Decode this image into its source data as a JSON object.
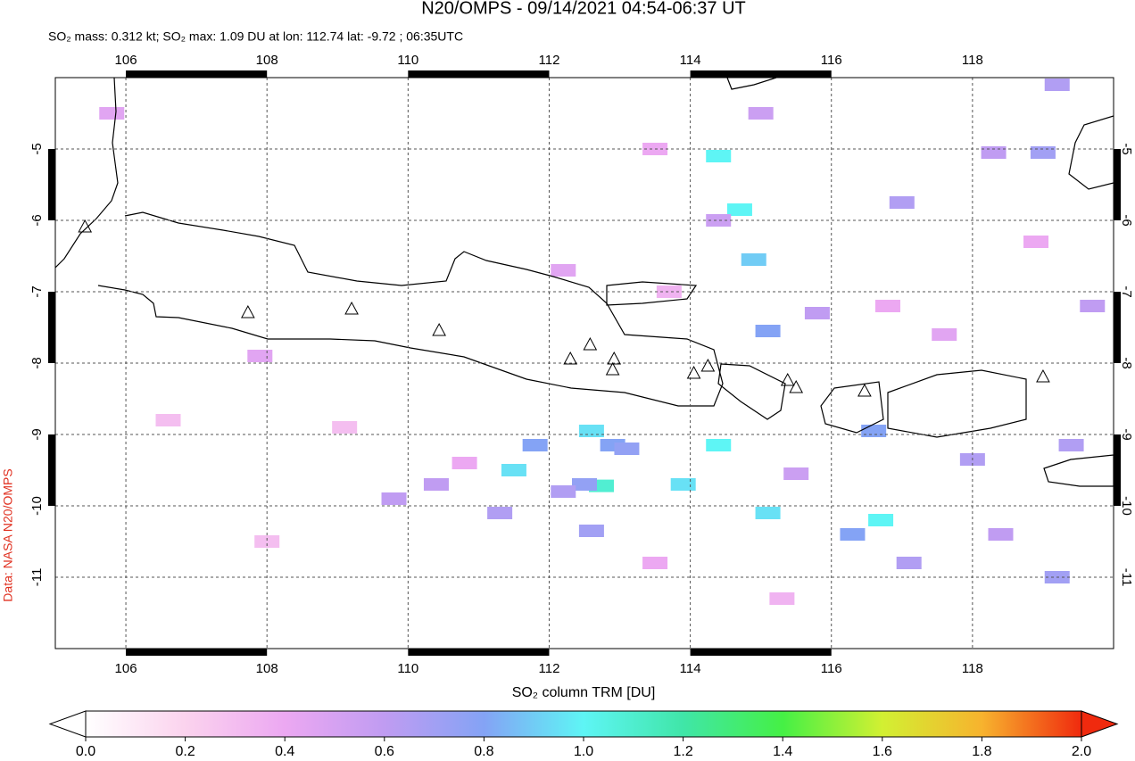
{
  "map": {
    "title": "N20/OMPS - 09/14/2021 04:54-06:37 UT",
    "subtitle": "SO₂ mass: 0.312 kt; SO₂ max: 1.09 DU at lon: 112.74 lat: -9.72 ; 06:35UTC",
    "credit": "Data: NASA N20/OMPS",
    "xlim": [
      105,
      120
    ],
    "ylim": [
      -12,
      -4
    ],
    "xticks": [
      106,
      108,
      110,
      112,
      114,
      116,
      118
    ],
    "yticks": [
      -5,
      -6,
      -7,
      -8,
      -9,
      -10,
      -11
    ],
    "grid": true,
    "pixels": [
      [
        114.4,
        -5.1,
        1.0
      ],
      [
        114.7,
        -5.85,
        1.0
      ],
      [
        114.9,
        -6.55,
        0.9
      ],
      [
        115.1,
        -7.55,
        0.8
      ],
      [
        112.6,
        -8.95,
        0.95
      ],
      [
        112.9,
        -9.15,
        0.8
      ],
      [
        113.1,
        -9.2,
        0.75
      ],
      [
        114.4,
        -9.15,
        1.0
      ],
      [
        112.74,
        -9.72,
        1.09
      ],
      [
        113.9,
        -9.7,
        0.95
      ],
      [
        111.5,
        -9.5,
        0.95
      ],
      [
        115.1,
        -10.1,
        0.95
      ],
      [
        116.7,
        -10.2,
        1.0
      ],
      [
        116.3,
        -10.4,
        0.8
      ],
      [
        111.8,
        -9.15,
        0.8
      ],
      [
        112.5,
        -9.7,
        0.75
      ],
      [
        112.2,
        -9.8,
        0.65
      ],
      [
        119.2,
        -11.0,
        0.7
      ],
      [
        119.2,
        -4.1,
        0.65
      ],
      [
        119.0,
        -5.05,
        0.7
      ],
      [
        117.0,
        -5.75,
        0.65
      ],
      [
        116.6,
        -8.95,
        0.8
      ],
      [
        118.0,
        -9.35,
        0.65
      ],
      [
        119.4,
        -9.15,
        0.65
      ],
      [
        117.1,
        -10.8,
        0.65
      ],
      [
        118.4,
        -10.4,
        0.6
      ],
      [
        111.3,
        -10.1,
        0.65
      ],
      [
        110.4,
        -9.7,
        0.6
      ],
      [
        112.6,
        -10.35,
        0.7
      ],
      [
        109.8,
        -9.9,
        0.6
      ],
      [
        119.7,
        -7.2,
        0.6
      ],
      [
        115.0,
        -4.5,
        0.55
      ],
      [
        114.4,
        -6.0,
        0.55
      ],
      [
        115.8,
        -7.3,
        0.6
      ],
      [
        115.5,
        -9.55,
        0.55
      ],
      [
        118.3,
        -5.05,
        0.6
      ],
      [
        113.5,
        -5.0,
        0.4
      ],
      [
        112.2,
        -6.7,
        0.45
      ],
      [
        116.8,
        -7.2,
        0.4
      ],
      [
        117.6,
        -7.6,
        0.45
      ],
      [
        118.9,
        -6.3,
        0.4
      ],
      [
        110.8,
        -9.4,
        0.4
      ],
      [
        113.5,
        -10.8,
        0.4
      ],
      [
        115.3,
        -11.3,
        0.35
      ],
      [
        108.0,
        -10.5,
        0.3
      ],
      [
        106.6,
        -8.8,
        0.3
      ],
      [
        109.1,
        -8.9,
        0.3
      ],
      [
        107.9,
        -7.9,
        0.45
      ],
      [
        105.8,
        -4.5,
        0.45
      ],
      [
        113.7,
        -7.0,
        0.35
      ]
    ],
    "volcanoes": [
      [
        105.42,
        -6.1
      ],
      [
        107.73,
        -7.3
      ],
      [
        109.2,
        -7.25
      ],
      [
        110.44,
        -7.55
      ],
      [
        112.3,
        -7.95
      ],
      [
        112.58,
        -7.75
      ],
      [
        112.92,
        -7.95
      ],
      [
        112.9,
        -8.1
      ],
      [
        114.05,
        -8.15
      ],
      [
        114.25,
        -8.05
      ],
      [
        115.38,
        -8.25
      ],
      [
        115.5,
        -8.35
      ],
      [
        116.47,
        -8.4
      ],
      [
        119.0,
        -8.2
      ]
    ],
    "colorbar": {
      "label": "SO₂ column TRM [DU]",
      "range": [
        0,
        2
      ],
      "colors": [
        "#ffffff",
        "#fbd3ee",
        "#eca8f2",
        "#c09cf2",
        "#84a3f5",
        "#5ef5f5",
        "#40e6a8",
        "#45f045",
        "#d2f032",
        "#f7b32e",
        "#f02a0e"
      ],
      "ticks": [
        {
          "value": 0,
          "label": "0.0"
        },
        {
          "value": 0.2,
          "label": "0.2"
        },
        {
          "value": 0.4,
          "label": "0.4"
        },
        {
          "value": 0.6,
          "label": "0.6"
        },
        {
          "value": 0.8,
          "label": "0.8"
        },
        {
          "value": 1,
          "label": "1.0"
        },
        {
          "value": 1.2,
          "label": "1.2"
        },
        {
          "value": 1.4,
          "label": "1.4"
        },
        {
          "value": 1.6,
          "label": "1.6"
        },
        {
          "value": 1.8,
          "label": "1.8"
        },
        {
          "value": 2,
          "label": "2.0"
        }
      ]
    }
  }
}
